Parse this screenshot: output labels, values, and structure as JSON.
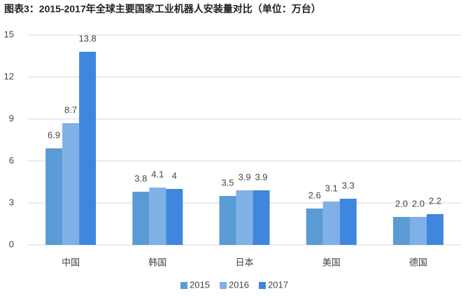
{
  "chart_data": {
    "type": "bar",
    "title": "图表3：2015-2017年全球主要国家工业机器人安装量对比（单位：万台）",
    "categories": [
      "中国",
      "韩国",
      "日本",
      "美国",
      "德国"
    ],
    "series": [
      {
        "name": "2015",
        "color": "#5b9bd5",
        "values": [
          6.9,
          3.8,
          3.5,
          2.6,
          2.0
        ],
        "value_labels": [
          "6.9",
          "3.8",
          "3.5",
          "2.6",
          "2.0"
        ]
      },
      {
        "name": "2016",
        "color": "#7fb0e6",
        "values": [
          8.7,
          4.1,
          3.9,
          3.1,
          2.0
        ],
        "value_labels": [
          "8.7",
          "4.1",
          "3.9",
          "3.1",
          "2.0"
        ]
      },
      {
        "name": "2017",
        "color": "#3f86de",
        "values": [
          13.8,
          4,
          3.9,
          3.3,
          2.2
        ],
        "value_labels": [
          "13.8",
          "4",
          "3.9",
          "3.3",
          "2.2"
        ]
      }
    ],
    "ylim": [
      0,
      15
    ],
    "yticks": [
      0,
      3,
      6,
      9,
      12,
      15
    ],
    "grid": true,
    "legend": "bottom"
  }
}
